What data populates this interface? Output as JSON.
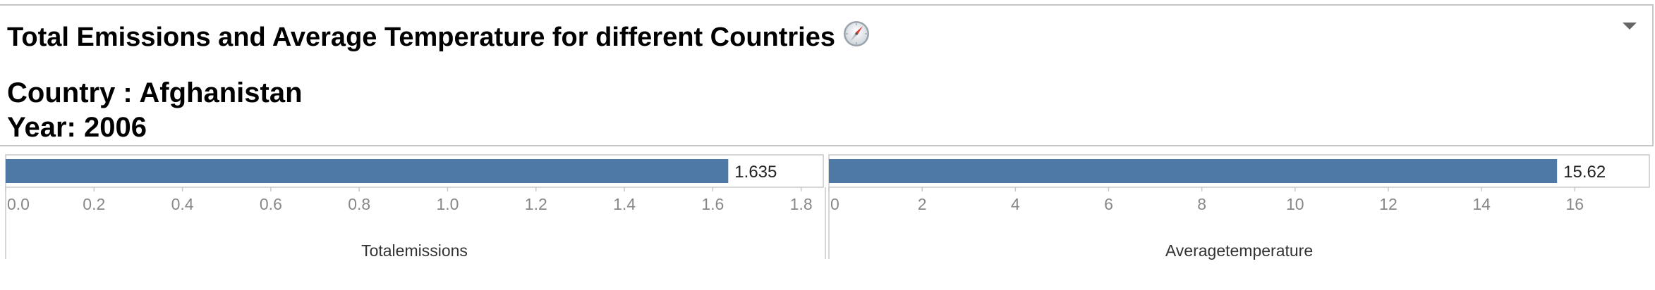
{
  "header": {
    "title": "Total Emissions and Average Temperature for different Countries",
    "country_line": "Country : Afghanistan",
    "year_line": "Year: 2006"
  },
  "colors": {
    "bar": "#4e79a7",
    "axis_text": "#888888",
    "axis_title": "#333333",
    "border": "#c8c8c8"
  },
  "chart_data": [
    {
      "type": "bar",
      "orientation": "horizontal",
      "categories": [
        ""
      ],
      "values": [
        1.635
      ],
      "data_labels": [
        "1.635"
      ],
      "xlabel": "Totalemissions",
      "xlim": [
        0,
        1.85
      ],
      "ticks": [
        "0.0",
        "0.2",
        "0.4",
        "0.6",
        "0.8",
        "1.0",
        "1.2",
        "1.4",
        "1.6",
        "1.8"
      ],
      "tick_values": [
        0,
        0.2,
        0.4,
        0.6,
        0.8,
        1.0,
        1.2,
        1.4,
        1.6,
        1.8
      ]
    },
    {
      "type": "bar",
      "orientation": "horizontal",
      "categories": [
        ""
      ],
      "values": [
        15.62
      ],
      "data_labels": [
        "15.62"
      ],
      "xlabel": "Averagetemperature",
      "xlim": [
        0,
        17.6
      ],
      "ticks": [
        "0",
        "2",
        "4",
        "6",
        "8",
        "10",
        "12",
        "14",
        "16"
      ],
      "tick_values": [
        0,
        2,
        4,
        6,
        8,
        10,
        12,
        14,
        16
      ]
    }
  ]
}
